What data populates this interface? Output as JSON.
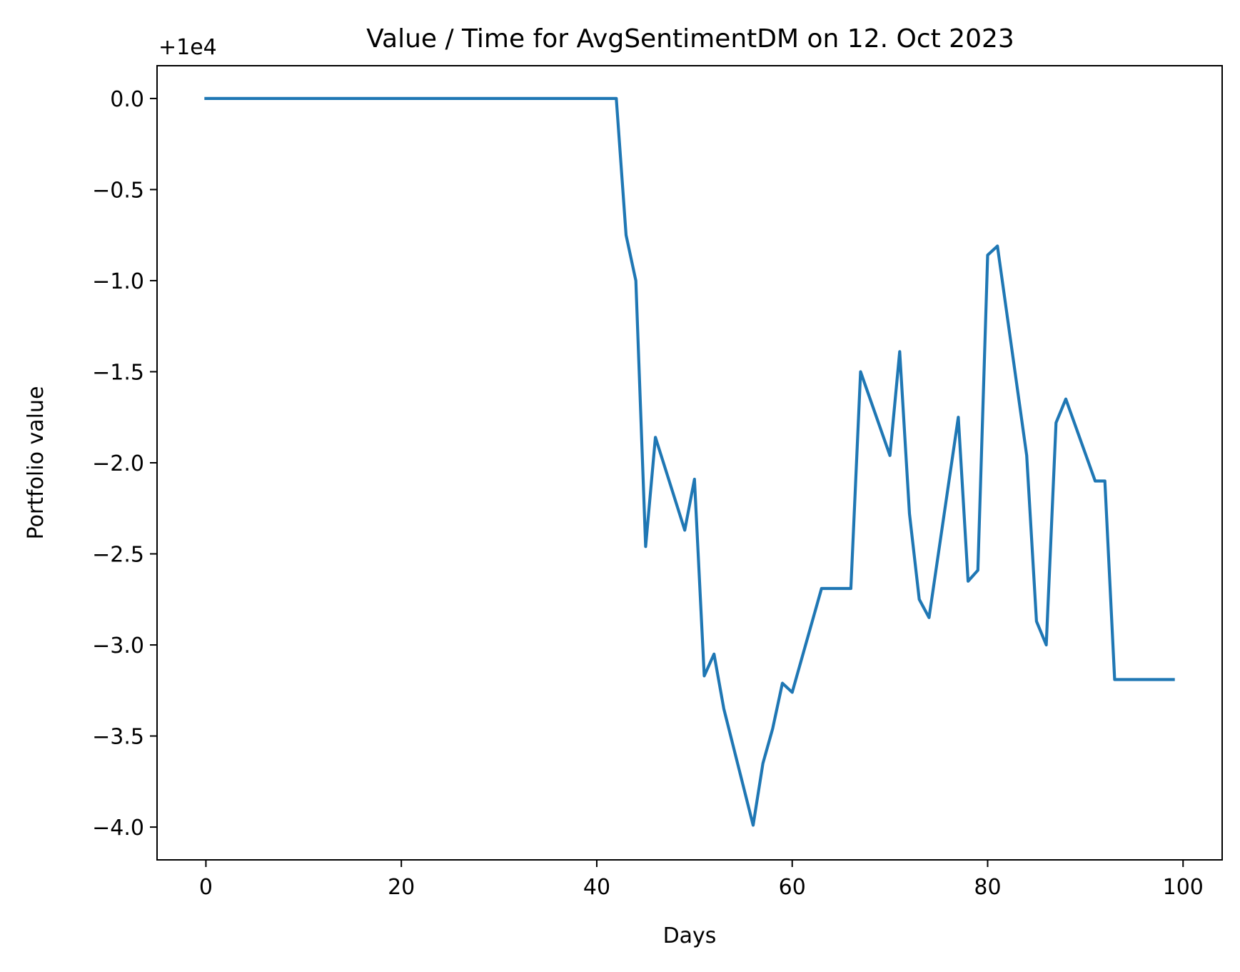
{
  "chart_data": {
    "type": "line",
    "title": "Value / Time for AvgSentimentDM on 12. Oct 2023",
    "xlabel": "Days",
    "ylabel": "Portfolio value",
    "y_offset_label": "+1e4",
    "xlim": [
      -5,
      104
    ],
    "ylim": [
      -4.18,
      0.18
    ],
    "x_ticks": [
      {
        "value": 0,
        "label": "0"
      },
      {
        "value": 20,
        "label": "20"
      },
      {
        "value": 40,
        "label": "40"
      },
      {
        "value": 60,
        "label": "60"
      },
      {
        "value": 80,
        "label": "80"
      },
      {
        "value": 100,
        "label": "100"
      }
    ],
    "y_ticks": [
      {
        "value": 0.0,
        "label": "0.0"
      },
      {
        "value": -0.5,
        "label": "−0.5"
      },
      {
        "value": -1.0,
        "label": "−1.0"
      },
      {
        "value": -1.5,
        "label": "−1.5"
      },
      {
        "value": -2.0,
        "label": "−2.0"
      },
      {
        "value": -2.5,
        "label": "−2.5"
      },
      {
        "value": -3.0,
        "label": "−3.0"
      },
      {
        "value": -3.5,
        "label": "−3.5"
      },
      {
        "value": -4.0,
        "label": "−4.0"
      }
    ],
    "grid": false,
    "series": [
      {
        "color": "#1f77b4",
        "x": [
          0,
          42,
          43,
          44,
          45,
          46,
          49,
          50,
          51,
          52,
          53,
          56,
          57,
          58,
          59,
          60,
          63,
          66,
          67,
          70,
          71,
          72,
          73,
          74,
          77,
          78,
          79,
          80,
          81,
          84,
          85,
          86,
          87,
          88,
          91,
          92,
          93,
          99
        ],
        "y": [
          0.0,
          0.0,
          -0.75,
          -1.0,
          -2.46,
          -1.86,
          -2.37,
          -2.09,
          -3.17,
          -3.05,
          -3.35,
          -3.99,
          -3.65,
          -3.46,
          -3.21,
          -3.26,
          -2.69,
          -2.69,
          -1.5,
          -1.96,
          -1.39,
          -2.28,
          -2.75,
          -2.85,
          -1.75,
          -2.65,
          -2.59,
          -0.86,
          -0.81,
          -1.96,
          -2.87,
          -3.0,
          -1.78,
          -1.65,
          -2.1,
          -2.1,
          -3.19,
          -3.19
        ]
      }
    ]
  }
}
